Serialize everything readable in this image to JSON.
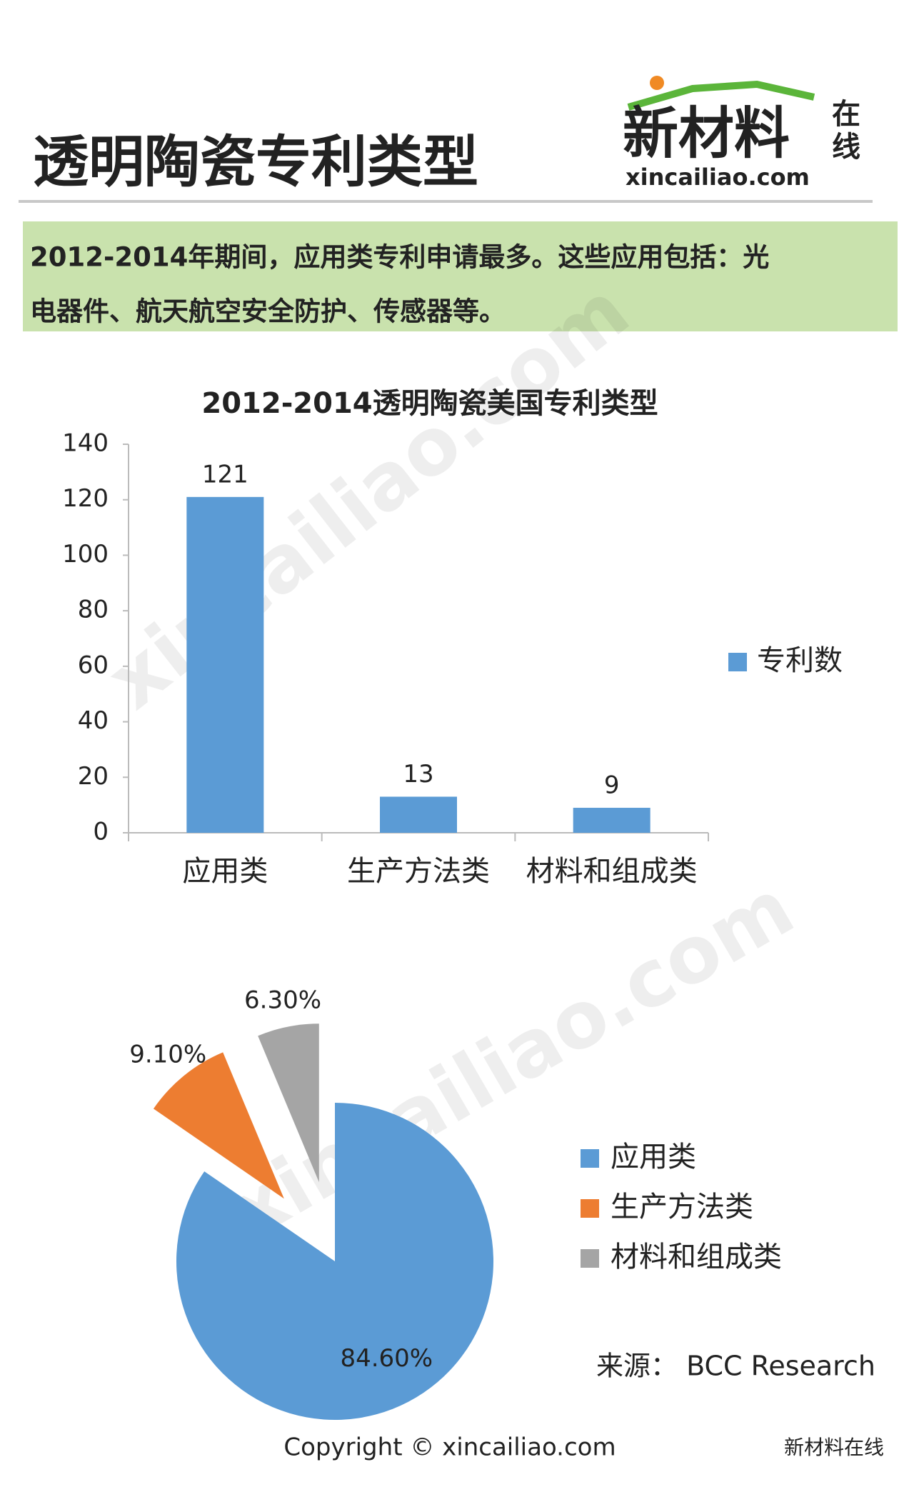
{
  "header": {
    "title": "透明陶瓷专利类型",
    "logo": "新材料",
    "logo_side": [
      "在",
      "线"
    ],
    "logo_url": "xincailiao.com"
  },
  "summary": [
    "2012-2014年期间，应用类专利申请最多。这些应用包括：光",
    "电器件、航天航空安全防护、传感器等。"
  ],
  "chart_data": [
    {
      "type": "bar",
      "title": "2012-2014透明陶瓷美国专利类型",
      "categories": [
        "应用类",
        "生产方法类",
        "材料和组成类"
      ],
      "series": [
        {
          "name": "专利数",
          "color": "#5b9bd5",
          "values": [
            121,
            13,
            9
          ]
        }
      ],
      "ylim": [
        0,
        140
      ],
      "yticks": [
        0,
        20,
        40,
        60,
        80,
        100,
        120,
        140
      ],
      "grid": false,
      "legend": "right"
    },
    {
      "type": "pie",
      "categories": [
        "应用类",
        "生产方法类",
        "材料和组成类"
      ],
      "values": [
        84.6,
        9.1,
        6.3
      ],
      "value_labels": [
        "84.60%",
        "9.10%",
        "6.30%"
      ],
      "colors": [
        "#5b9bd5",
        "#ed7d31",
        "#a5a5a5"
      ],
      "legend": "right"
    }
  ],
  "source": "来源： BCC Research",
  "copyright": "Copyright © xincailiao.com",
  "wechat": "新材料在线",
  "watermark": "xincailiao.com"
}
